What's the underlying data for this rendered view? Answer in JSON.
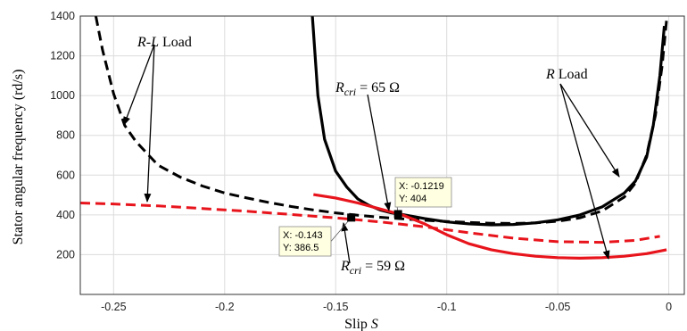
{
  "chart_data": {
    "type": "line",
    "xlabel": "Slip S",
    "ylabel": "Stator angular frequency (rd/s)",
    "xlim": [
      -0.265,
      0.007
    ],
    "ylim": [
      0,
      1400
    ],
    "xticks": [
      -0.25,
      -0.2,
      -0.15,
      -0.1,
      -0.05,
      0
    ],
    "yticks": [
      200,
      400,
      600,
      800,
      1000,
      1200,
      1400
    ],
    "grid": true,
    "series": [
      {
        "color": "#000000",
        "dash": "dashed",
        "x": [
          -0.258,
          -0.255,
          -0.25,
          -0.245,
          -0.24,
          -0.23,
          -0.22,
          -0.21,
          -0.2,
          -0.19,
          -0.18,
          -0.17,
          -0.16,
          -0.15,
          -0.14,
          -0.13,
          -0.12,
          -0.11,
          -0.1,
          -0.09,
          -0.08,
          -0.07,
          -0.06,
          -0.05,
          -0.04,
          -0.03,
          -0.02,
          -0.015,
          -0.01,
          -0.006,
          -0.003,
          -0.001
        ],
        "y": [
          1400,
          1230,
          1010,
          850,
          770,
          650,
          590,
          545,
          510,
          485,
          462,
          442,
          425,
          410,
          398,
          388,
          380,
          373,
          367,
          362,
          358,
          357,
          360,
          368,
          385,
          420,
          490,
          560,
          700,
          900,
          1150,
          1380
        ]
      },
      {
        "color": "#000000",
        "dash": "solid",
        "x": [
          -0.1605,
          -0.158,
          -0.155,
          -0.15,
          -0.145,
          -0.14,
          -0.135,
          -0.13,
          -0.125,
          -0.12,
          -0.11,
          -0.1,
          -0.09,
          -0.08,
          -0.07,
          -0.06,
          -0.05,
          -0.04,
          -0.03,
          -0.02,
          -0.015,
          -0.01,
          -0.007,
          -0.004,
          -0.002
        ],
        "y": [
          1400,
          1000,
          780,
          620,
          540,
          480,
          448,
          425,
          410,
          402,
          382,
          365,
          355,
          350,
          352,
          360,
          375,
          400,
          440,
          510,
          570,
          690,
          850,
          1100,
          1350
        ]
      },
      {
        "color": "#e8141c",
        "dash": "dashed",
        "x": [
          -0.265,
          -0.25,
          -0.23,
          -0.21,
          -0.19,
          -0.17,
          -0.15,
          -0.13,
          -0.11,
          -0.09,
          -0.07,
          -0.05,
          -0.03,
          -0.015,
          -0.008,
          -0.004
        ],
        "y": [
          460,
          455,
          445,
          432,
          418,
          402,
          385,
          365,
          340,
          310,
          283,
          265,
          262,
          272,
          285,
          292
        ]
      },
      {
        "color": "#e8141c",
        "dash": "solid",
        "x": [
          -0.16,
          -0.15,
          -0.14,
          -0.13,
          -0.12,
          -0.11,
          -0.1,
          -0.09,
          -0.08,
          -0.07,
          -0.06,
          -0.05,
          -0.04,
          -0.03,
          -0.02,
          -0.01,
          -0.004,
          -0.001
        ],
        "y": [
          502,
          485,
          460,
          430,
          400,
          355,
          300,
          255,
          225,
          205,
          192,
          185,
          182,
          185,
          192,
          205,
          218,
          225
        ]
      }
    ],
    "datatips": [
      {
        "x": -0.1219,
        "y": 404,
        "x_text": "X: -0.1219",
        "y_text": "Y: 404"
      },
      {
        "x": -0.143,
        "y": 386.5,
        "x_text": "X: -0.143",
        "y_text": "Y: 386.5"
      }
    ],
    "annotations": [
      {
        "text": "R-L Load"
      },
      {
        "text": "R Load"
      },
      {
        "text": "Rcri = 65 Ω"
      },
      {
        "text": "Rcri = 59 Ω"
      }
    ]
  }
}
